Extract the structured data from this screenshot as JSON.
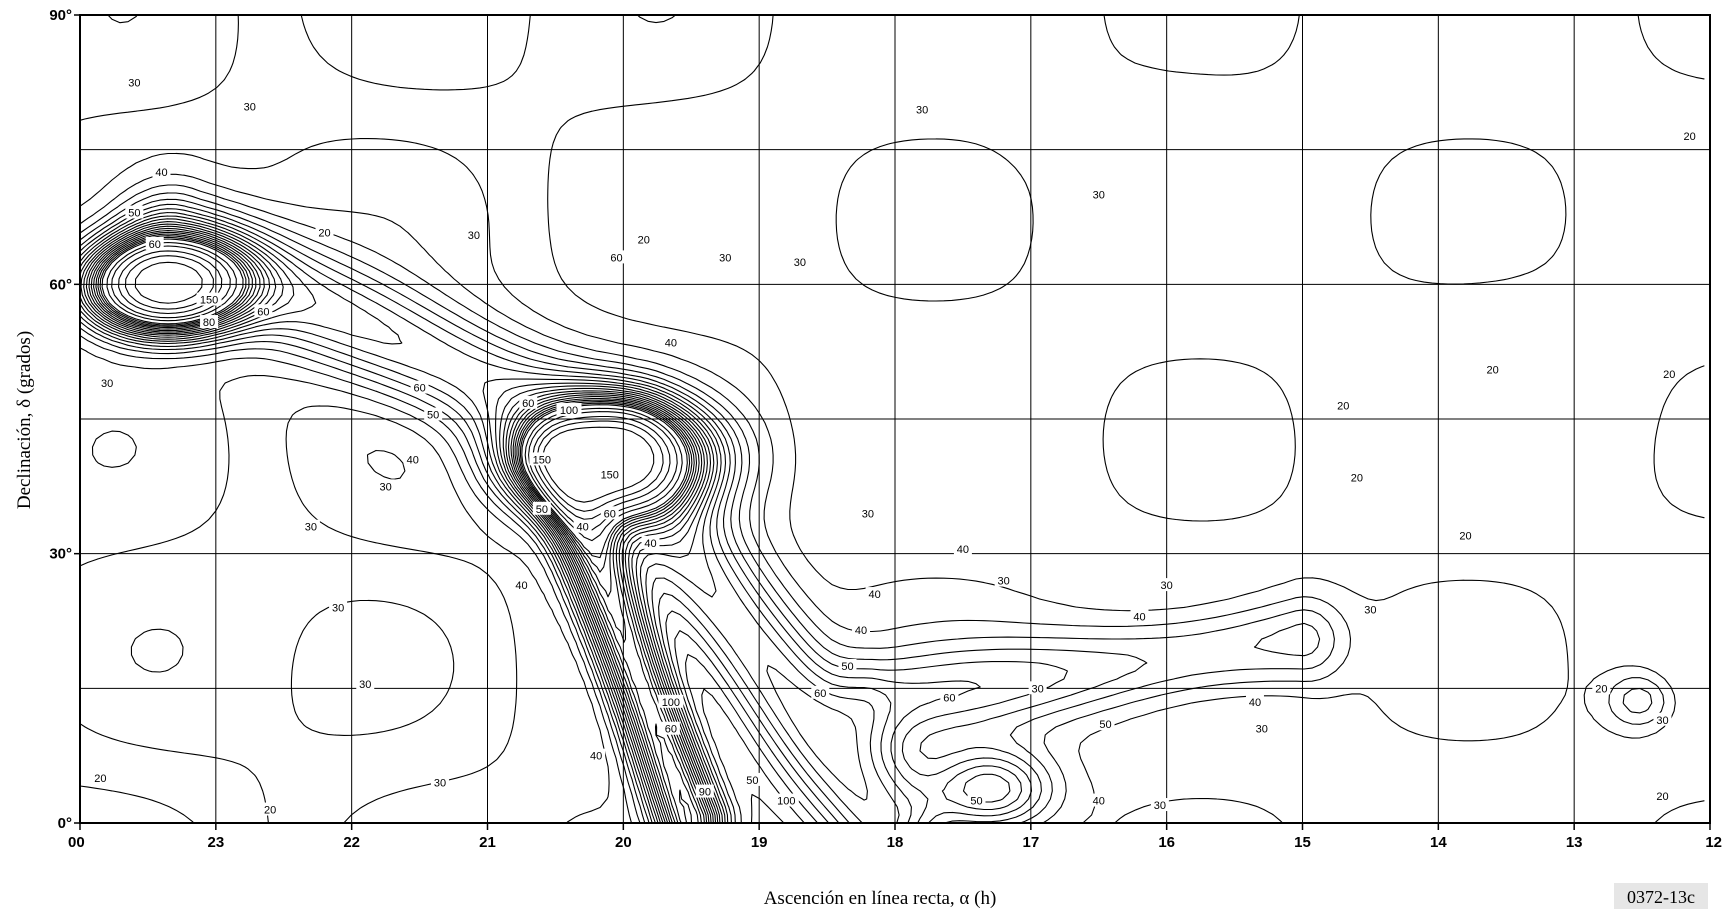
{
  "chart_data": {
    "type": "line",
    "title": "",
    "xlabel": "Ascención en línea recta, α (h)",
    "ylabel": "Declinación, δ (grados)",
    "x_ticks": [
      "00",
      "23",
      "22",
      "21",
      "20",
      "19",
      "18",
      "17",
      "16",
      "15",
      "14",
      "13",
      "12"
    ],
    "y_ticks": [
      {
        "value": 90,
        "label": "90°"
      },
      {
        "value": 60,
        "label": "60°"
      },
      {
        "value": 30,
        "label": "30°"
      },
      {
        "value": 0,
        "label": "0°"
      }
    ],
    "xlim": [
      24,
      12
    ],
    "ylim": [
      0,
      90
    ],
    "grid": true,
    "figure_id": "0372-13c",
    "contour_labels": [
      {
        "text": "30",
        "ra": 23.6,
        "dec": 82.5
      },
      {
        "text": "30",
        "ra": 22.75,
        "dec": 79.8
      },
      {
        "text": "40",
        "ra": 23.4,
        "dec": 72.5
      },
      {
        "text": "50",
        "ra": 23.6,
        "dec": 68.0
      },
      {
        "text": "60",
        "ra": 23.45,
        "dec": 64.5
      },
      {
        "text": "150",
        "ra": 23.05,
        "dec": 58.3
      },
      {
        "text": "80",
        "ra": 23.05,
        "dec": 55.8
      },
      {
        "text": "60",
        "ra": 22.65,
        "dec": 57.0
      },
      {
        "text": "30",
        "ra": 23.8,
        "dec": 49.0
      },
      {
        "text": "30",
        "ra": 21.1,
        "dec": 65.5
      },
      {
        "text": "20",
        "ra": 22.2,
        "dec": 65.8
      },
      {
        "text": "60",
        "ra": 20.05,
        "dec": 63.0
      },
      {
        "text": "30",
        "ra": 19.25,
        "dec": 63.0
      },
      {
        "text": "40",
        "ra": 19.65,
        "dec": 53.5
      },
      {
        "text": "60",
        "ra": 21.5,
        "dec": 48.5
      },
      {
        "text": "50",
        "ra": 21.4,
        "dec": 45.5
      },
      {
        "text": "40",
        "ra": 21.55,
        "dec": 40.5
      },
      {
        "text": "30",
        "ra": 21.75,
        "dec": 37.5
      },
      {
        "text": "30",
        "ra": 22.3,
        "dec": 33.0
      },
      {
        "text": "150",
        "ra": 20.1,
        "dec": 38.8
      },
      {
        "text": "150",
        "ra": 20.6,
        "dec": 40.5
      },
      {
        "text": "100",
        "ra": 20.4,
        "dec": 46.0
      },
      {
        "text": "60",
        "ra": 20.7,
        "dec": 46.8
      },
      {
        "text": "50",
        "ra": 20.6,
        "dec": 35.0
      },
      {
        "text": "60",
        "ra": 20.1,
        "dec": 34.5
      },
      {
        "text": "40",
        "ra": 20.3,
        "dec": 33.0
      },
      {
        "text": "40",
        "ra": 19.8,
        "dec": 31.2
      },
      {
        "text": "30",
        "ra": 18.2,
        "dec": 34.5
      },
      {
        "text": "30",
        "ra": 18.7,
        "dec": 62.5
      },
      {
        "text": "40",
        "ra": 20.75,
        "dec": 26.5
      },
      {
        "text": "30",
        "ra": 22.1,
        "dec": 24.0
      },
      {
        "text": "30",
        "ra": 21.9,
        "dec": 15.5
      },
      {
        "text": "20",
        "ra": 23.85,
        "dec": 5.0
      },
      {
        "text": "20",
        "ra": 22.6,
        "dec": 1.5
      },
      {
        "text": "30",
        "ra": 21.35,
        "dec": 4.5
      },
      {
        "text": "40",
        "ra": 20.2,
        "dec": 7.5
      },
      {
        "text": "60",
        "ra": 19.65,
        "dec": 10.5
      },
      {
        "text": "100",
        "ra": 19.65,
        "dec": 13.5
      },
      {
        "text": "90",
        "ra": 19.4,
        "dec": 3.5
      },
      {
        "text": "50",
        "ra": 19.05,
        "dec": 4.8
      },
      {
        "text": "100",
        "ra": 18.8,
        "dec": 2.5
      },
      {
        "text": "60",
        "ra": 18.55,
        "dec": 14.5
      },
      {
        "text": "50",
        "ra": 18.35,
        "dec": 17.5
      },
      {
        "text": "40",
        "ra": 18.25,
        "dec": 21.5
      },
      {
        "text": "30",
        "ra": 16.95,
        "dec": 15.0
      },
      {
        "text": "60",
        "ra": 17.6,
        "dec": 14.0
      },
      {
        "text": "50",
        "ra": 17.4,
        "dec": 2.5
      },
      {
        "text": "40",
        "ra": 16.5,
        "dec": 2.5
      },
      {
        "text": "50",
        "ra": 16.45,
        "dec": 11.0
      },
      {
        "text": "40",
        "ra": 15.35,
        "dec": 13.5
      },
      {
        "text": "30",
        "ra": 15.3,
        "dec": 10.5
      },
      {
        "text": "30",
        "ra": 16.05,
        "dec": 2.0
      },
      {
        "text": "30",
        "ra": 17.2,
        "dec": 27.0
      },
      {
        "text": "40",
        "ra": 16.2,
        "dec": 23.0
      },
      {
        "text": "30",
        "ra": 16.0,
        "dec": 26.5
      },
      {
        "text": "30",
        "ra": 14.5,
        "dec": 23.8
      },
      {
        "text": "20",
        "ra": 14.7,
        "dec": 46.5
      },
      {
        "text": "20",
        "ra": 13.6,
        "dec": 50.5
      },
      {
        "text": "20",
        "ra": 14.6,
        "dec": 38.5
      },
      {
        "text": "20",
        "ra": 13.8,
        "dec": 32.0
      },
      {
        "text": "20",
        "ra": 12.3,
        "dec": 50.0
      },
      {
        "text": "20",
        "ra": 12.8,
        "dec": 15.0
      },
      {
        "text": "30",
        "ra": 12.35,
        "dec": 11.5
      },
      {
        "text": "20",
        "ra": 12.35,
        "dec": 3.0
      },
      {
        "text": "20",
        "ra": 12.15,
        "dec": 76.5
      },
      {
        "text": "30",
        "ra": 17.8,
        "dec": 79.5
      },
      {
        "text": "30",
        "ra": 16.5,
        "dec": 70.0
      },
      {
        "text": "20",
        "ra": 19.85,
        "dec": 65.0
      },
      {
        "text": "40",
        "ra": 17.5,
        "dec": 30.5
      },
      {
        "text": "40",
        "ra": 18.15,
        "dec": 25.5
      }
    ]
  }
}
